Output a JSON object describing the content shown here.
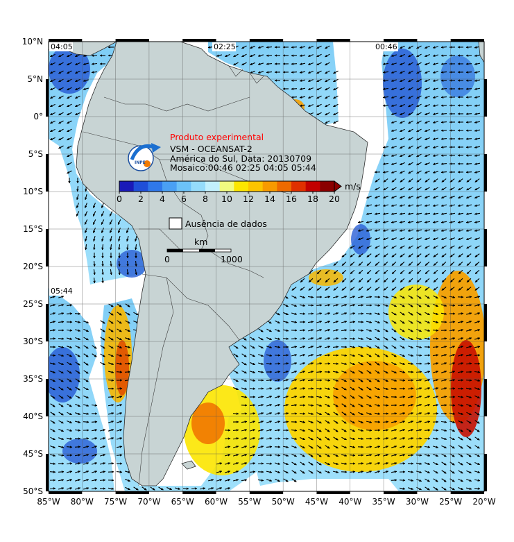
{
  "product": {
    "label": "Produto experimental",
    "line1": "VSM - OCEANSAT-2",
    "line2": "América do Sul, Data: 20130709",
    "line3": "Mosaico:00:46 02:25 04:05 05:44"
  },
  "logo": {
    "text": "INPE"
  },
  "colorbar": {
    "unit": "m/s",
    "min": 0,
    "max": 20,
    "ticks": [
      "0",
      "2",
      "4",
      "6",
      "8",
      "10",
      "12",
      "14",
      "16",
      "18",
      "20"
    ],
    "colors": [
      "#1a1ab8",
      "#1f4fd8",
      "#2f78ea",
      "#4aa0f4",
      "#6cc2f8",
      "#95dcfb",
      "#c2f0fd",
      "#f1fb80",
      "#fce600",
      "#fcc400",
      "#f79a00",
      "#ee6a00",
      "#e03000",
      "#c20000",
      "#8a0000"
    ]
  },
  "no_data": {
    "label": "Ausência de dados"
  },
  "scale_bar": {
    "unit": "km",
    "start": "0",
    "end": "1000"
  },
  "pass_times": [
    "04:05",
    "02:25",
    "00:46",
    "05:44"
  ],
  "axes": {
    "lat_labels": [
      "10°N",
      "5°N",
      "0°",
      "5°S",
      "10°S",
      "15°S",
      "20°S",
      "25°S",
      "30°S",
      "35°S",
      "40°S",
      "45°S",
      "50°S"
    ],
    "lon_labels": [
      "85°W",
      "80°W",
      "75°W",
      "70°W",
      "65°W",
      "60°W",
      "55°W",
      "50°W",
      "45°W",
      "40°W",
      "35°W",
      "30°W",
      "25°W",
      "20°W"
    ],
    "lat_range": [
      -50,
      10
    ],
    "lon_range": [
      -85,
      -20
    ]
  },
  "colors": {
    "land": "#c8d4d4",
    "grid": "#555555",
    "frame": "#000000",
    "low_wind": "#2a5fd6",
    "high_wind": "#d43a00"
  }
}
